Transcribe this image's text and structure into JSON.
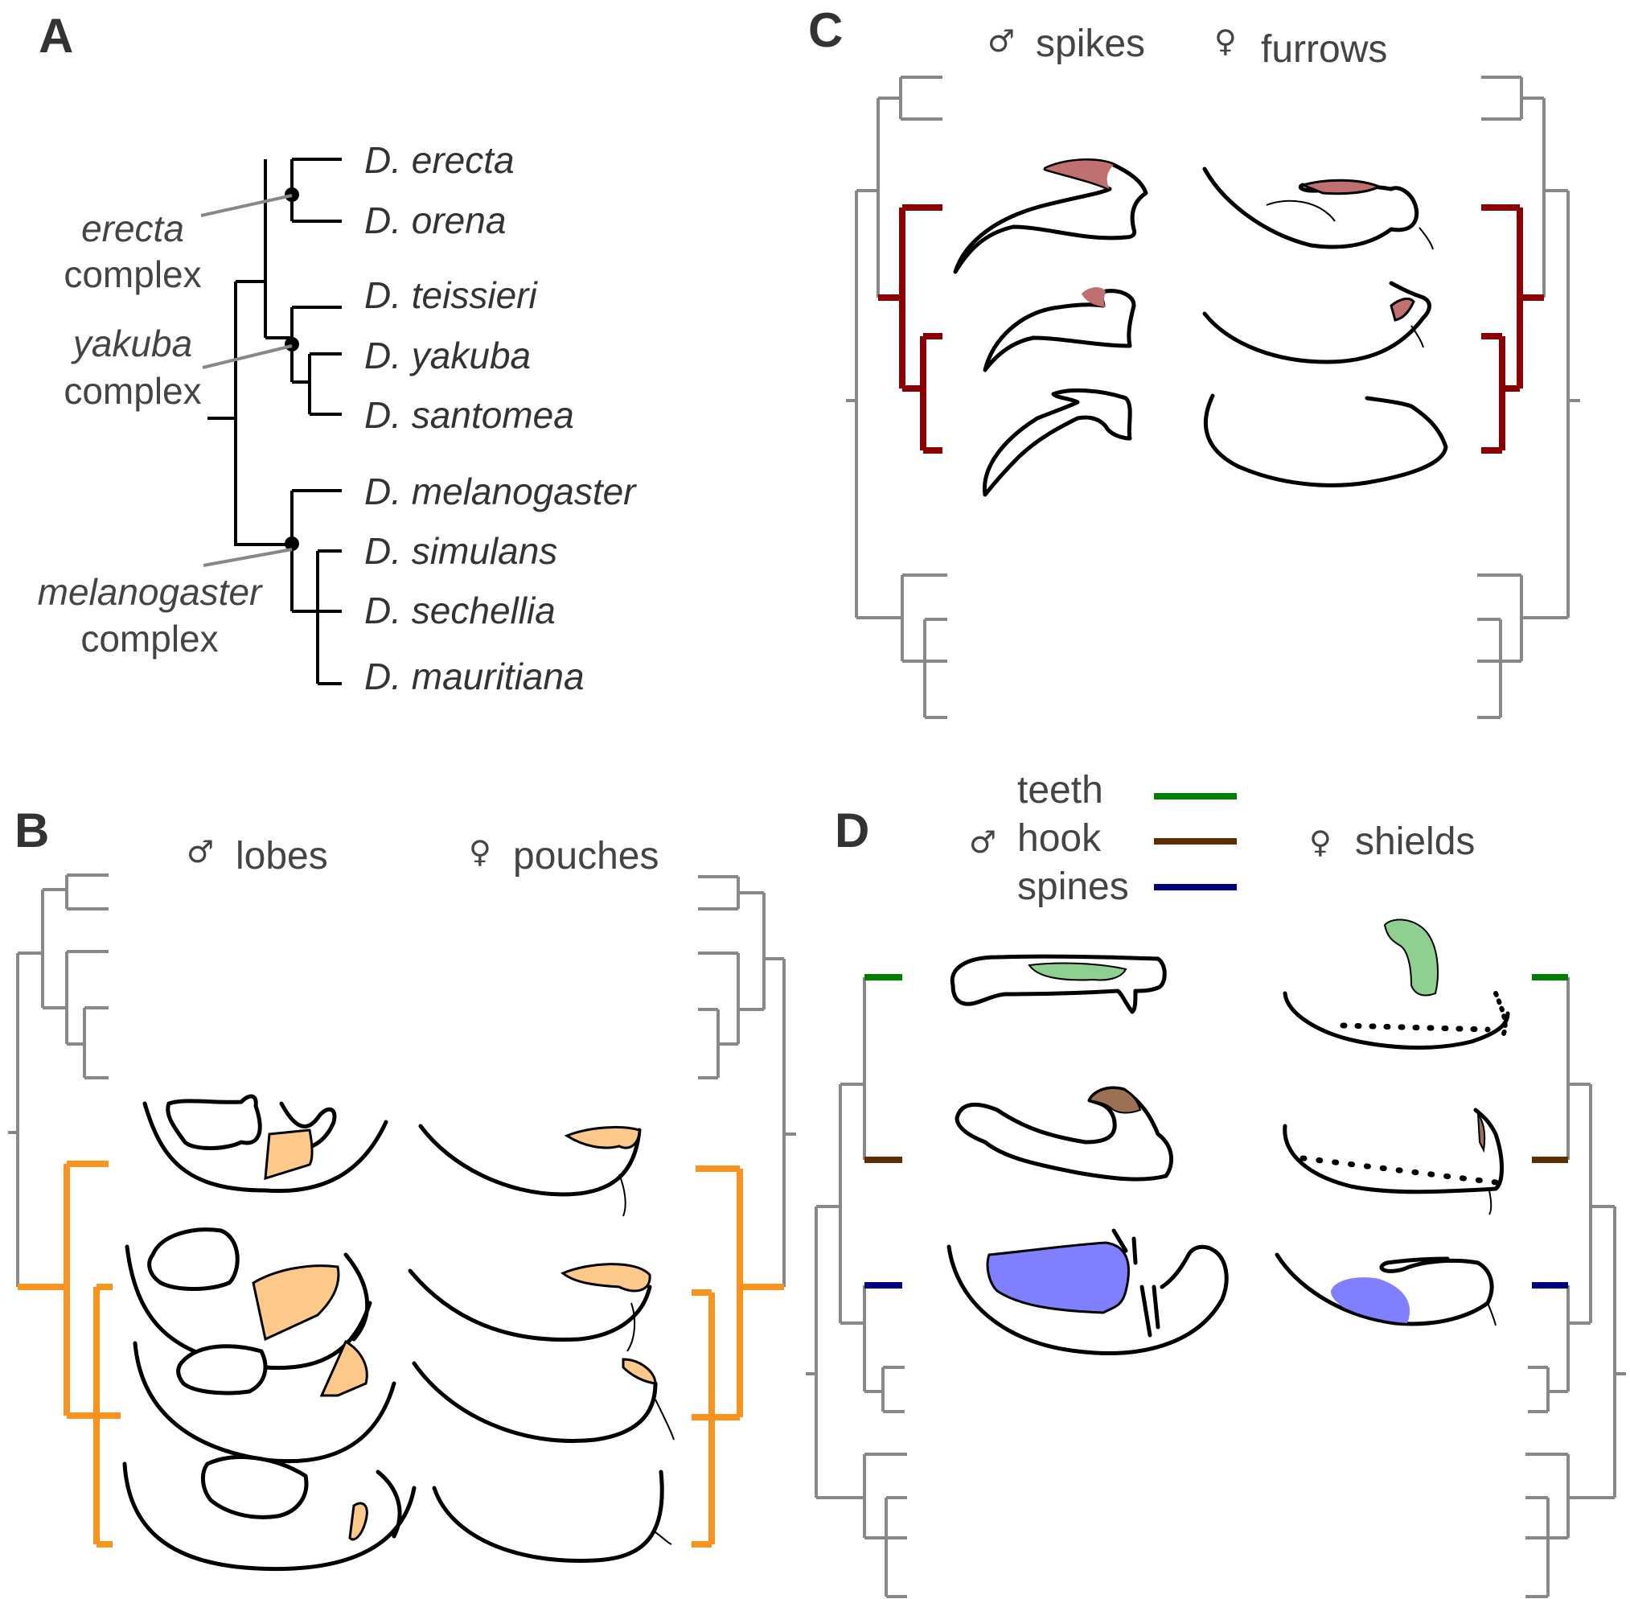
{
  "panels": {
    "a": {
      "letter": "A",
      "species": [
        "D. erecta",
        "D. orena",
        "D. teissieri",
        "D. yakuba",
        "D. santomea",
        "D. melanogaster",
        "D. simulans",
        "D. sechellia",
        "D. mauritiana"
      ],
      "complexes": [
        {
          "italic": "erecta",
          "plain": "complex"
        },
        {
          "italic": "yakuba",
          "plain": "complex"
        },
        {
          "italic": "melanogaster",
          "plain": "complex"
        }
      ]
    },
    "b": {
      "letter": "B",
      "male_symbol": "♂",
      "male_label": "lobes",
      "female_symbol": "♀",
      "female_label": "pouches",
      "highlight_color": "#f7931e",
      "fill_color": "#fdc98a"
    },
    "c": {
      "letter": "C",
      "male_symbol": "♂",
      "male_label": "spikes",
      "female_symbol": "♀",
      "female_label": "furrows",
      "highlight_color": "#8b0000",
      "fill_color": "#c07070"
    },
    "d": {
      "letter": "D",
      "male_symbol": "♂",
      "female_symbol": "♀",
      "female_label": "shields",
      "legend": [
        {
          "label": "teeth",
          "color": "#008000"
        },
        {
          "label": "hook",
          "color": "#5c2e00"
        },
        {
          "label": "spines",
          "color": "#000080"
        }
      ],
      "fills": {
        "teeth": "#8fcf8f",
        "hook": "#9b7055",
        "spines": "#7f7fff"
      }
    }
  },
  "colors": {
    "tree_grey": "#888888",
    "tree_black": "#000000",
    "text": "#333333"
  }
}
